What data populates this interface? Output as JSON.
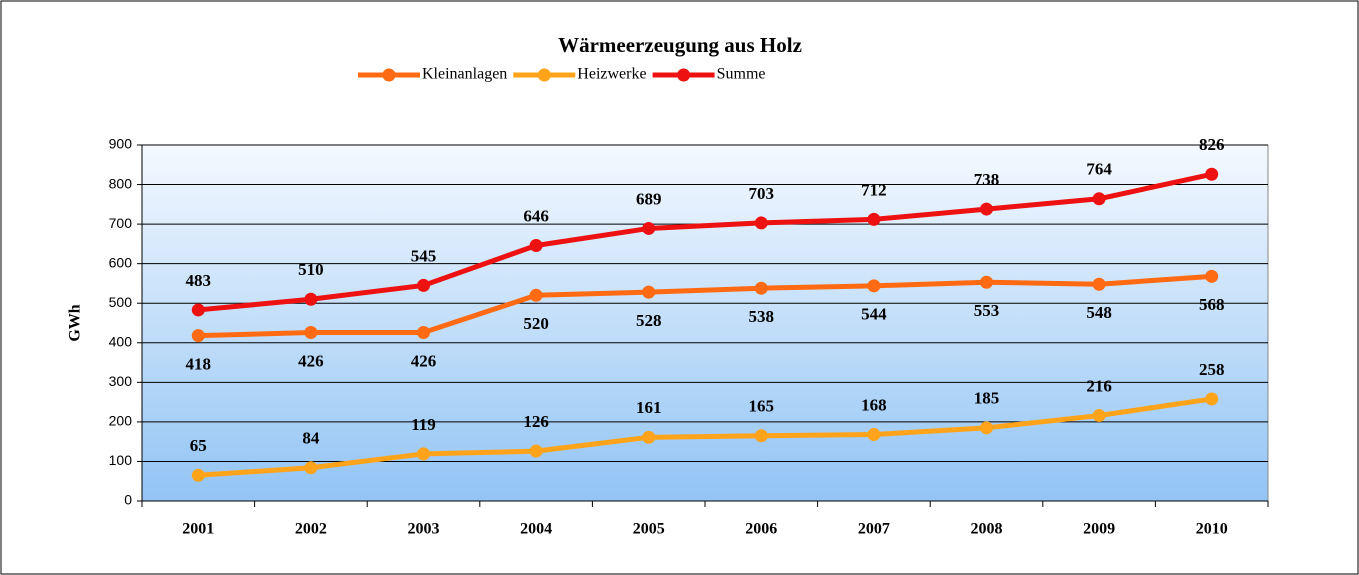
{
  "chart_data": {
    "type": "line",
    "title": "Wärmeerzeugung aus Holz",
    "ylabel": "GWh",
    "categories": [
      "2001",
      "2002",
      "2003",
      "2004",
      "2005",
      "2006",
      "2007",
      "2008",
      "2009",
      "2010"
    ],
    "series": [
      {
        "name": "Kleinanlagen",
        "color": "#ff6a13",
        "values": [
          418,
          426,
          426,
          520,
          528,
          538,
          544,
          553,
          548,
          568
        ]
      },
      {
        "name": "Heizwerke",
        "color": "#ffa41a",
        "values": [
          65,
          84,
          119,
          126,
          161,
          165,
          168,
          185,
          216,
          258
        ]
      },
      {
        "name": "Summe",
        "color": "#ee1111",
        "values": [
          483,
          510,
          545,
          646,
          689,
          703,
          712,
          738,
          764,
          826
        ]
      }
    ],
    "ylim": [
      0,
      900
    ],
    "yticks": [
      0,
      100,
      200,
      300,
      400,
      500,
      600,
      700,
      800,
      900
    ],
    "grid": true,
    "legend": "top"
  }
}
